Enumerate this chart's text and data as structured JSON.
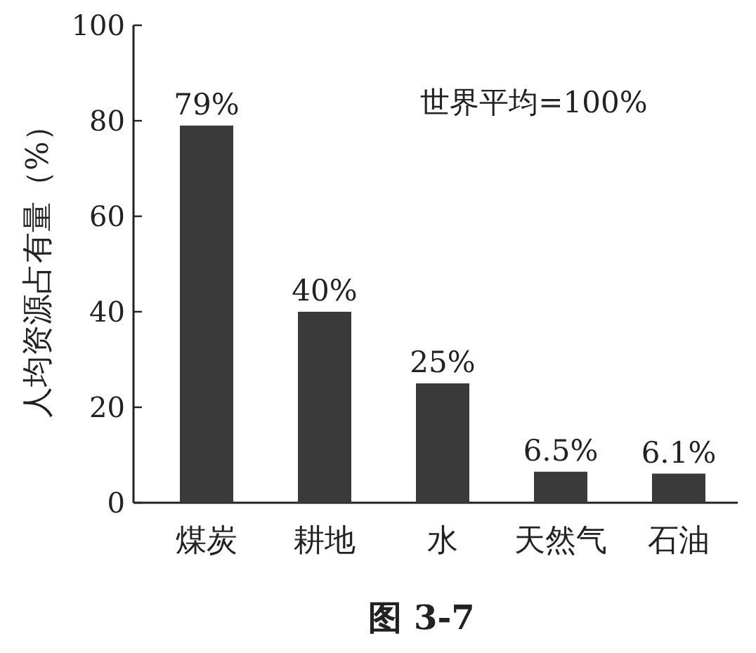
{
  "chart_data": {
    "type": "bar",
    "categories": [
      "煤炭",
      "耕地",
      "水",
      "天然气",
      "石油"
    ],
    "values": [
      79,
      40,
      25,
      6.5,
      6.1
    ],
    "value_labels": [
      "79%",
      "40%",
      "25%",
      "6.5%",
      "6.1%"
    ],
    "color": "#3a3a3a",
    "ylabel": "人均资源占有量（%）",
    "ylim": [
      0,
      100
    ],
    "yticks": [
      0,
      20,
      40,
      60,
      80,
      100
    ],
    "annotations": [
      "世界平均=100%",
      "图 3-7"
    ]
  }
}
